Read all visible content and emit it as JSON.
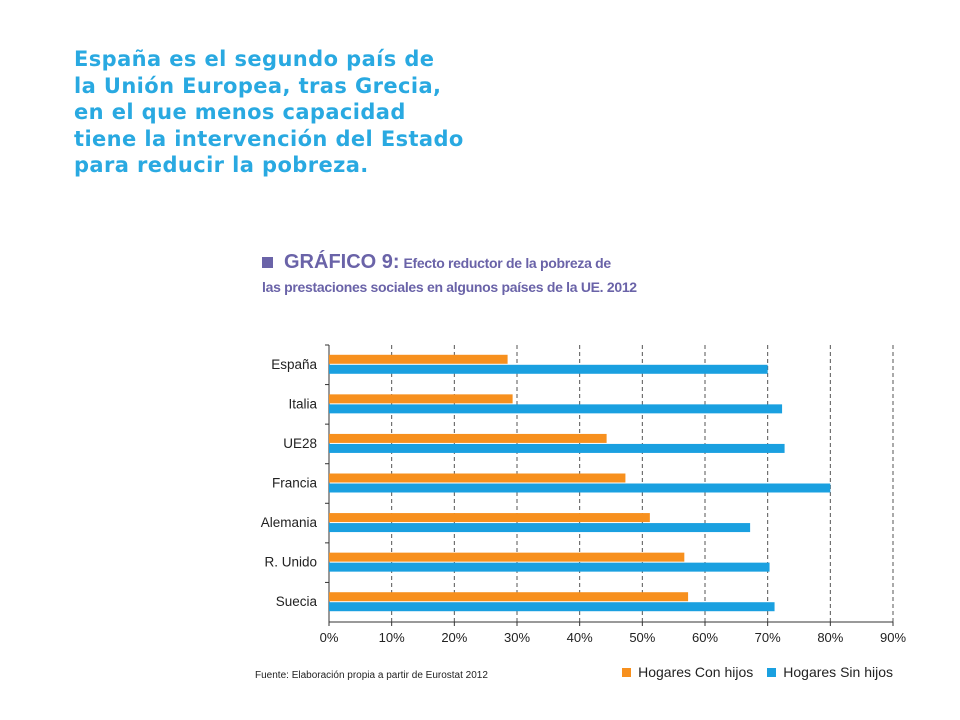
{
  "headline": "España es el segundo país de\nla Unión Europea, tras Grecia,\nen el que menos capacidad\ntiene la intervención del Estado\npara reducir la pobreza.",
  "chart_title": {
    "label": "GRÁFICO 9:",
    "text_line1": "Efecto reductor de la pobreza de",
    "text_line2": "las prestaciones sociales en algunos países de la UE. 2012"
  },
  "source": "Fuente: Elaboración propia a partir de Eurostat 2012",
  "colors": {
    "con_hijos": "#f7901e",
    "sin_hijos": "#1aa0e0",
    "title": "#6a63a8",
    "headline": "#29a9e1"
  },
  "chart_data": {
    "type": "bar",
    "orientation": "horizontal",
    "title": "GRÁFICO 9: Efecto reductor de la pobreza de las prestaciones sociales en algunos países de la UE. 2012",
    "categories": [
      "España",
      "Italia",
      "UE28",
      "Francia",
      "Alemania",
      "R. Unido",
      "Suecia"
    ],
    "series": [
      {
        "name": "Hogares Con hijos",
        "values": [
          28.5,
          29.3,
          44.3,
          47.3,
          51.2,
          56.7,
          57.3
        ]
      },
      {
        "name": "Hogares Sin hijos",
        "values": [
          70.0,
          72.3,
          72.7,
          80.0,
          67.2,
          70.3,
          71.1
        ]
      }
    ],
    "xlim": [
      0,
      90
    ],
    "xticks": [
      "0%",
      "10%",
      "20%",
      "30%",
      "40%",
      "50%",
      "60%",
      "70%",
      "80%",
      "90%"
    ],
    "grid": "vertical dashed",
    "legend": "bottom-right"
  }
}
